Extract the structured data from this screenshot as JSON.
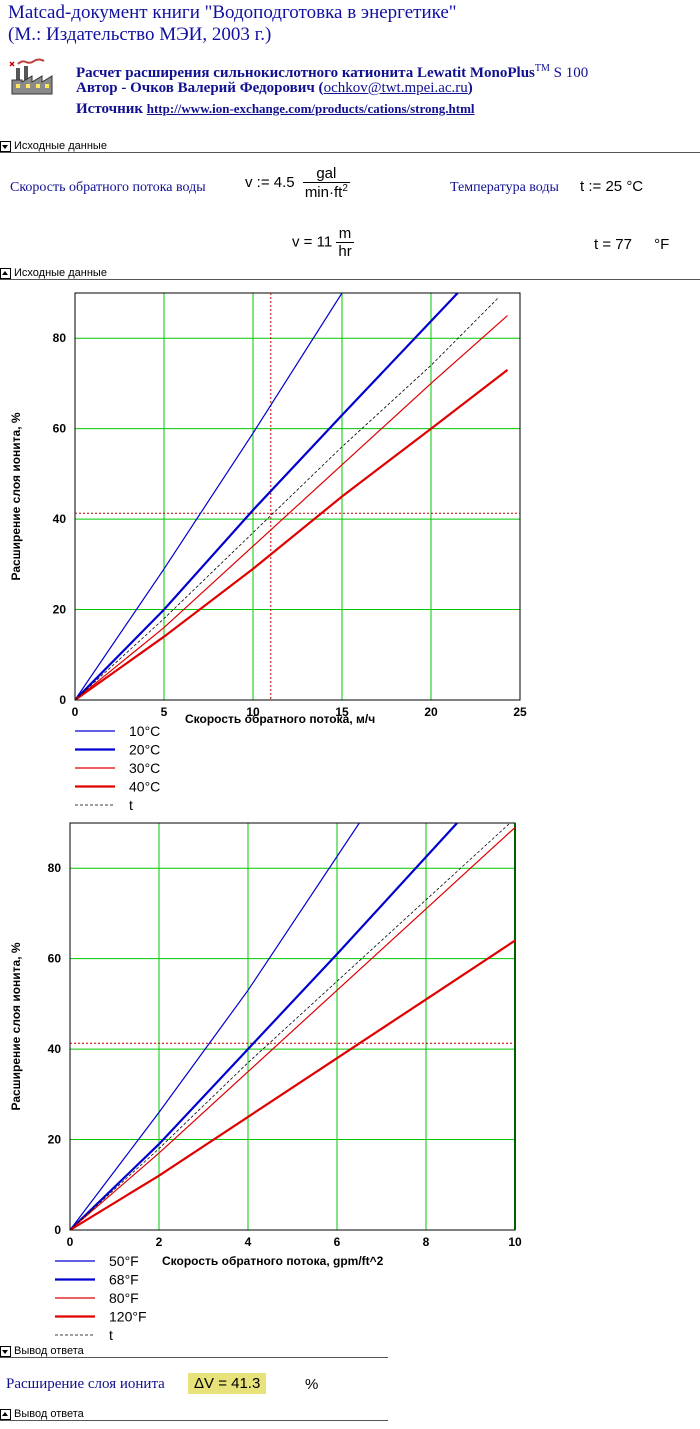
{
  "header": {
    "title_line1": "Matcad-документ книги \"Водоподготовка в энергетике\"",
    "title_line2": "(М.: Издательство МЭИ, 2003 г.)",
    "calc_title": "Расчет расширения сильнокислотного катионита Lewatit MonoPlus",
    "calc_title_sup": "TM",
    "calc_title_end": " S 100",
    "author_prefix": "Автор - Очков Валерий Федорович (",
    "author_email": "ochkov@twt.mpei.ac.ru",
    "author_suffix": ")",
    "source_prefix": "Источник ",
    "source_url": "http://www.ion-exchange.com/products/cations/strong.html"
  },
  "regions": {
    "input_top": "Исходные данные",
    "input_bottom": "Исходные данные",
    "output_top": "Вывод ответа",
    "output_bottom": "Вывод ответа"
  },
  "inputs": {
    "flow_label": "Скорость обратного потока воды",
    "flow_var": "v",
    "flow_assign": ":=",
    "flow_value": "4.5",
    "flow_unit_num": "gal",
    "flow_unit_den": "min·ft",
    "flow_unit_den_sup": "2",
    "temp_label": "Температура воды",
    "temp_var": "t",
    "temp_assign": ":=",
    "temp_value": "25",
    "temp_unit": "°C",
    "flow_result_var": "v",
    "flow_result_eq": "=",
    "flow_result_value": "11",
    "flow_result_unit_num": "m",
    "flow_result_unit_den": "hr",
    "temp_result_var": "t",
    "temp_result_eq": "=",
    "temp_result_value": "77",
    "temp_result_unit": "°F"
  },
  "answer": {
    "label": "Расширение слоя ионита",
    "expr": "ΔV = 41.3",
    "unit": "%"
  },
  "colors": {
    "grid": "#00c800",
    "blue": "#0000d0",
    "red": "#e00000",
    "ref": "#c00000"
  },
  "chart_data": [
    {
      "type": "line",
      "xlabel": "Скорость обратного потока, м/ч",
      "ylabel": "Расширение слоя ионита, %",
      "xlim": [
        0,
        25
      ],
      "ylim": [
        0,
        90
      ],
      "xticks": [
        0,
        5,
        10,
        15,
        20,
        25
      ],
      "yticks": [
        0,
        20,
        40,
        60,
        80
      ],
      "grid": true,
      "legend_position": "bottom-left",
      "ref_x": 11,
      "ref_y": 41.3,
      "series": [
        {
          "name": "10°C",
          "color": "#0000d0",
          "width": 1.2,
          "dash": false,
          "x": [
            0,
            5,
            10,
            15
          ],
          "y": [
            0,
            29,
            59,
            90
          ]
        },
        {
          "name": "20°C",
          "color": "#0000d0",
          "width": 2.2,
          "dash": false,
          "x": [
            0,
            5,
            10,
            15,
            21.5
          ],
          "y": [
            0,
            20,
            42,
            63,
            90
          ]
        },
        {
          "name": "30°C",
          "color": "#e00000",
          "width": 1.2,
          "dash": false,
          "x": [
            0,
            5,
            10,
            15,
            20,
            24.3
          ],
          "y": [
            0,
            16,
            34,
            52,
            70,
            85
          ]
        },
        {
          "name": "40°C",
          "color": "#e00000",
          "width": 2.2,
          "dash": false,
          "x": [
            0,
            5,
            10,
            15,
            20,
            24.3
          ],
          "y": [
            0,
            14,
            29,
            45,
            60,
            73
          ]
        },
        {
          "name": "t",
          "color": "#000000",
          "width": 0.8,
          "dash": true,
          "x": [
            0,
            5,
            10,
            15,
            20,
            23.8
          ],
          "y": [
            0,
            18,
            37,
            56,
            74,
            89
          ]
        }
      ]
    },
    {
      "type": "line",
      "xlabel": "Скорость обратного потока, gpm/ft^2",
      "ylabel": "Расширение слоя ионита, %",
      "xlim": [
        0,
        10
      ],
      "ylim": [
        0,
        90
      ],
      "xticks": [
        0,
        2,
        4,
        6,
        8,
        10
      ],
      "yticks": [
        0,
        20,
        40,
        60,
        80
      ],
      "grid": true,
      "legend_position": "bottom-left",
      "ref_x": null,
      "ref_y": 41.3,
      "series": [
        {
          "name": "50°F",
          "color": "#0000d0",
          "width": 1.2,
          "dash": false,
          "x": [
            0,
            2,
            4,
            6.5
          ],
          "y": [
            0,
            26,
            53,
            90
          ]
        },
        {
          "name": "68°F",
          "color": "#0000d0",
          "width": 2.2,
          "dash": false,
          "x": [
            0,
            2,
            4,
            6,
            8.7
          ],
          "y": [
            0,
            19,
            40,
            61,
            90
          ]
        },
        {
          "name": "80°F",
          "color": "#e00000",
          "width": 1.2,
          "dash": false,
          "x": [
            0,
            2,
            4,
            6,
            8,
            10
          ],
          "y": [
            0,
            17,
            35,
            53,
            71,
            89
          ]
        },
        {
          "name": "120°F",
          "color": "#e00000",
          "width": 2.2,
          "dash": false,
          "x": [
            0,
            2,
            4,
            6,
            8,
            10
          ],
          "y": [
            0,
            12,
            25,
            38,
            51,
            64
          ]
        },
        {
          "name": "t",
          "color": "#000000",
          "width": 0.8,
          "dash": true,
          "x": [
            0,
            2,
            4,
            6,
            8,
            10
          ],
          "y": [
            0,
            18,
            37,
            55,
            73,
            91
          ]
        }
      ]
    }
  ]
}
